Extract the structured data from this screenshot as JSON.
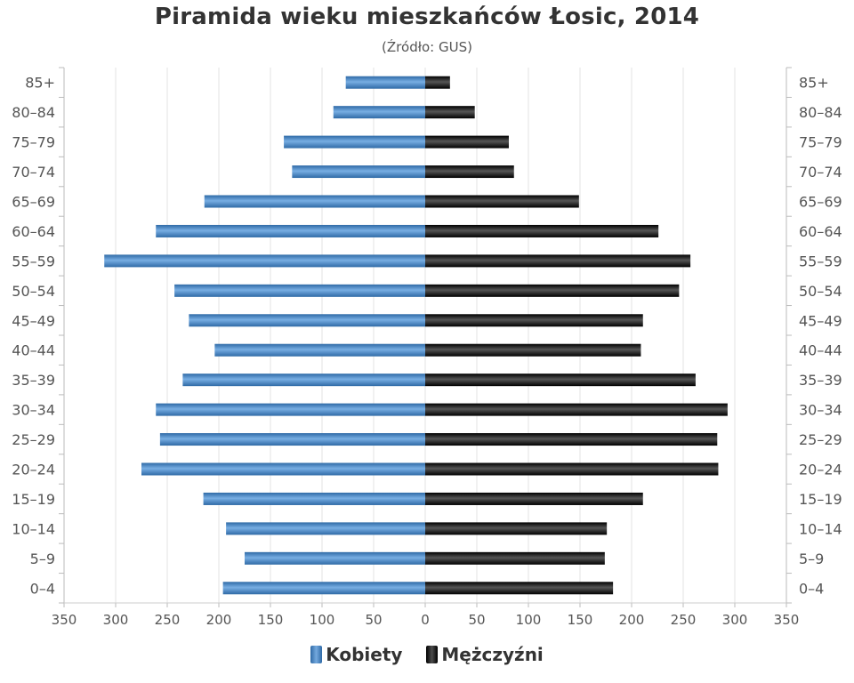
{
  "chart_data": {
    "type": "bar",
    "title": "Piramida wieku mieszkańców Łosic, 2014",
    "subtitle": "(Źródło: GUS)",
    "categories": [
      "85+",
      "80–84",
      "75–79",
      "70–74",
      "65–69",
      "60–64",
      "55–59",
      "50–54",
      "45–49",
      "40–44",
      "35–39",
      "30–34",
      "25–29",
      "20–24",
      "15–19",
      "10–14",
      "5–9",
      "0–4"
    ],
    "series": [
      {
        "name": "Kobiety",
        "color": "#4a86c5",
        "values": [
          77,
          89,
          137,
          129,
          214,
          261,
          311,
          243,
          229,
          204,
          235,
          261,
          257,
          275,
          215,
          193,
          175,
          196
        ]
      },
      {
        "name": "Mężczyźni",
        "color": "#1a1a1a",
        "values": [
          24,
          48,
          81,
          86,
          149,
          226,
          257,
          246,
          211,
          209,
          262,
          293,
          283,
          284,
          211,
          176,
          174,
          182
        ]
      }
    ],
    "x_ticks": [
      "350",
      "300",
      "250",
      "200",
      "150",
      "100",
      "50",
      "0",
      "50",
      "100",
      "150",
      "200",
      "250",
      "300",
      "350"
    ],
    "xlim": [
      -350,
      350
    ],
    "orientation": "horizontal-diverging",
    "grid": true,
    "legend_position": "bottom-center"
  }
}
